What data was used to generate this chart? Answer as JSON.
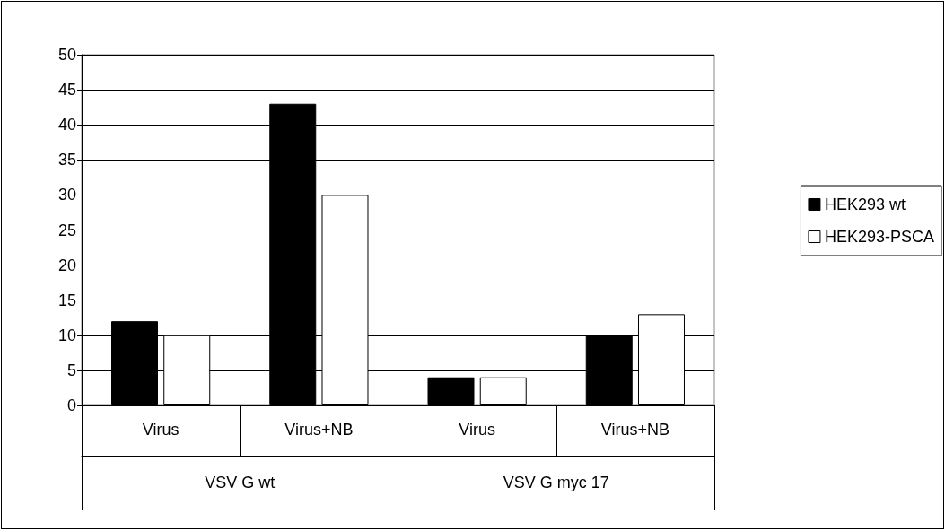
{
  "chart_data": {
    "type": "bar",
    "categories": [
      "Virus",
      "Virus+NB",
      "Virus",
      "Virus+NB"
    ],
    "series": [
      {
        "name": "HEK293 wt",
        "color": "#000000",
        "values": [
          12,
          43,
          4,
          10
        ]
      },
      {
        "name": "HEK293-PSCA",
        "color": "#ffffff",
        "values": [
          10,
          30,
          4,
          13
        ]
      }
    ],
    "annotations": [
      "VSV G wt",
      "VSV G myc 17"
    ],
    "ylim": [
      0,
      50
    ],
    "yticks": [
      0,
      5,
      10,
      15,
      20,
      25,
      30,
      35,
      40,
      45,
      50
    ],
    "grid": "y",
    "legend": "right"
  }
}
